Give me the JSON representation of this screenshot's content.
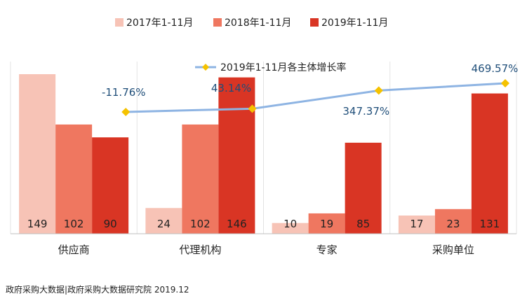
{
  "chart_data": {
    "type": "bar",
    "categories": [
      "供应商",
      "代理机构",
      "专家",
      "采购单位"
    ],
    "series": [
      {
        "name": "2017年1-11月",
        "color": "#f7c3b6",
        "values": [
          149,
          24,
          10,
          17
        ]
      },
      {
        "name": "2018年1-11月",
        "color": "#ef7760",
        "values": [
          102,
          102,
          19,
          23
        ]
      },
      {
        "name": "2019年1-11月",
        "color": "#d93524",
        "values": [
          90,
          146,
          85,
          131
        ]
      }
    ],
    "line_series": {
      "name": "2019年1-11月各主体增长率",
      "line_color": "#8eb4e3",
      "marker_color": "#f5c200",
      "values": [
        -11.76,
        43.14,
        347.37,
        469.57
      ],
      "labels": [
        "-11.76%",
        "43.14%",
        "347.37%",
        "469.57%"
      ]
    },
    "grid": false,
    "legend": "top"
  },
  "footer": {
    "text": "政府采购大数据|政府采购大数据研究院 2019.12"
  }
}
